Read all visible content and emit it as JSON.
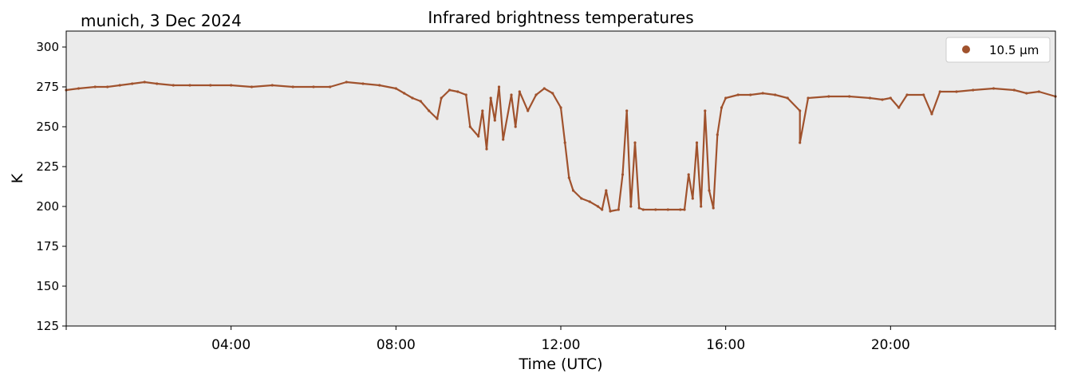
{
  "header": {
    "station_label": "munich, 3 Dec 2024"
  },
  "chart_data": {
    "type": "scatter",
    "title": "Infrared brightness temperatures",
    "xlabel": "Time (UTC)",
    "ylabel": "K",
    "xlim_hours": [
      0,
      24
    ],
    "ylim": [
      125,
      310
    ],
    "y_ticks": [
      125,
      150,
      175,
      200,
      225,
      250,
      275,
      300
    ],
    "x_ticks": [
      {
        "hour": 4,
        "label": "04:00"
      },
      {
        "hour": 8,
        "label": "08:00"
      },
      {
        "hour": 12,
        "label": "12:00"
      },
      {
        "hour": 16,
        "label": "16:00"
      },
      {
        "hour": 20,
        "label": "20:00"
      }
    ],
    "grid": false,
    "legend_position": "top-right",
    "background_color": "#ebebeb",
    "series": [
      {
        "name": "10.5 µm",
        "color": "#a0522d",
        "points_hour_K": [
          [
            0.0,
            273
          ],
          [
            0.3,
            274
          ],
          [
            0.7,
            275
          ],
          [
            1.0,
            275
          ],
          [
            1.3,
            276
          ],
          [
            1.6,
            277
          ],
          [
            1.9,
            278
          ],
          [
            2.2,
            277
          ],
          [
            2.6,
            276
          ],
          [
            3.0,
            276
          ],
          [
            3.5,
            276
          ],
          [
            4.0,
            276
          ],
          [
            4.5,
            275
          ],
          [
            5.0,
            276
          ],
          [
            5.5,
            275
          ],
          [
            6.0,
            275
          ],
          [
            6.4,
            275
          ],
          [
            6.8,
            278
          ],
          [
            7.2,
            277
          ],
          [
            7.6,
            276
          ],
          [
            8.0,
            274
          ],
          [
            8.2,
            271
          ],
          [
            8.4,
            268
          ],
          [
            8.6,
            266
          ],
          [
            8.8,
            260
          ],
          [
            9.0,
            255
          ],
          [
            9.1,
            268
          ],
          [
            9.3,
            273
          ],
          [
            9.5,
            272
          ],
          [
            9.7,
            270
          ],
          [
            9.8,
            250
          ],
          [
            10.0,
            244
          ],
          [
            10.1,
            260
          ],
          [
            10.2,
            236
          ],
          [
            10.3,
            268
          ],
          [
            10.4,
            254
          ],
          [
            10.5,
            275
          ],
          [
            10.6,
            242
          ],
          [
            10.8,
            270
          ],
          [
            10.9,
            250
          ],
          [
            11.0,
            272
          ],
          [
            11.2,
            260
          ],
          [
            11.4,
            270
          ],
          [
            11.6,
            274
          ],
          [
            11.8,
            271
          ],
          [
            12.0,
            262
          ],
          [
            12.1,
            240
          ],
          [
            12.2,
            218
          ],
          [
            12.3,
            210
          ],
          [
            12.5,
            205
          ],
          [
            12.7,
            203
          ],
          [
            12.9,
            200
          ],
          [
            13.0,
            198
          ],
          [
            13.1,
            210
          ],
          [
            13.2,
            197
          ],
          [
            13.4,
            198
          ],
          [
            13.5,
            220
          ],
          [
            13.6,
            260
          ],
          [
            13.7,
            200
          ],
          [
            13.8,
            240
          ],
          [
            13.9,
            199
          ],
          [
            14.0,
            198
          ],
          [
            14.3,
            198
          ],
          [
            14.6,
            198
          ],
          [
            14.9,
            198
          ],
          [
            15.0,
            198
          ],
          [
            15.1,
            220
          ],
          [
            15.2,
            205
          ],
          [
            15.3,
            240
          ],
          [
            15.4,
            200
          ],
          [
            15.5,
            260
          ],
          [
            15.6,
            210
          ],
          [
            15.7,
            199
          ],
          [
            15.8,
            245
          ],
          [
            15.9,
            262
          ],
          [
            16.0,
            268
          ],
          [
            16.3,
            270
          ],
          [
            16.6,
            270
          ],
          [
            16.9,
            271
          ],
          [
            17.2,
            270
          ],
          [
            17.5,
            268
          ],
          [
            17.8,
            260
          ],
          [
            17.8,
            240
          ],
          [
            18.0,
            268
          ],
          [
            18.5,
            269
          ],
          [
            19.0,
            269
          ],
          [
            19.5,
            268
          ],
          [
            19.8,
            267
          ],
          [
            20.0,
            268
          ],
          [
            20.2,
            262
          ],
          [
            20.4,
            270
          ],
          [
            20.8,
            270
          ],
          [
            21.0,
            258
          ],
          [
            21.2,
            272
          ],
          [
            21.6,
            272
          ],
          [
            22.0,
            273
          ],
          [
            22.5,
            274
          ],
          [
            23.0,
            273
          ],
          [
            23.3,
            271
          ],
          [
            23.6,
            272
          ],
          [
            24.0,
            269
          ]
        ]
      }
    ]
  }
}
